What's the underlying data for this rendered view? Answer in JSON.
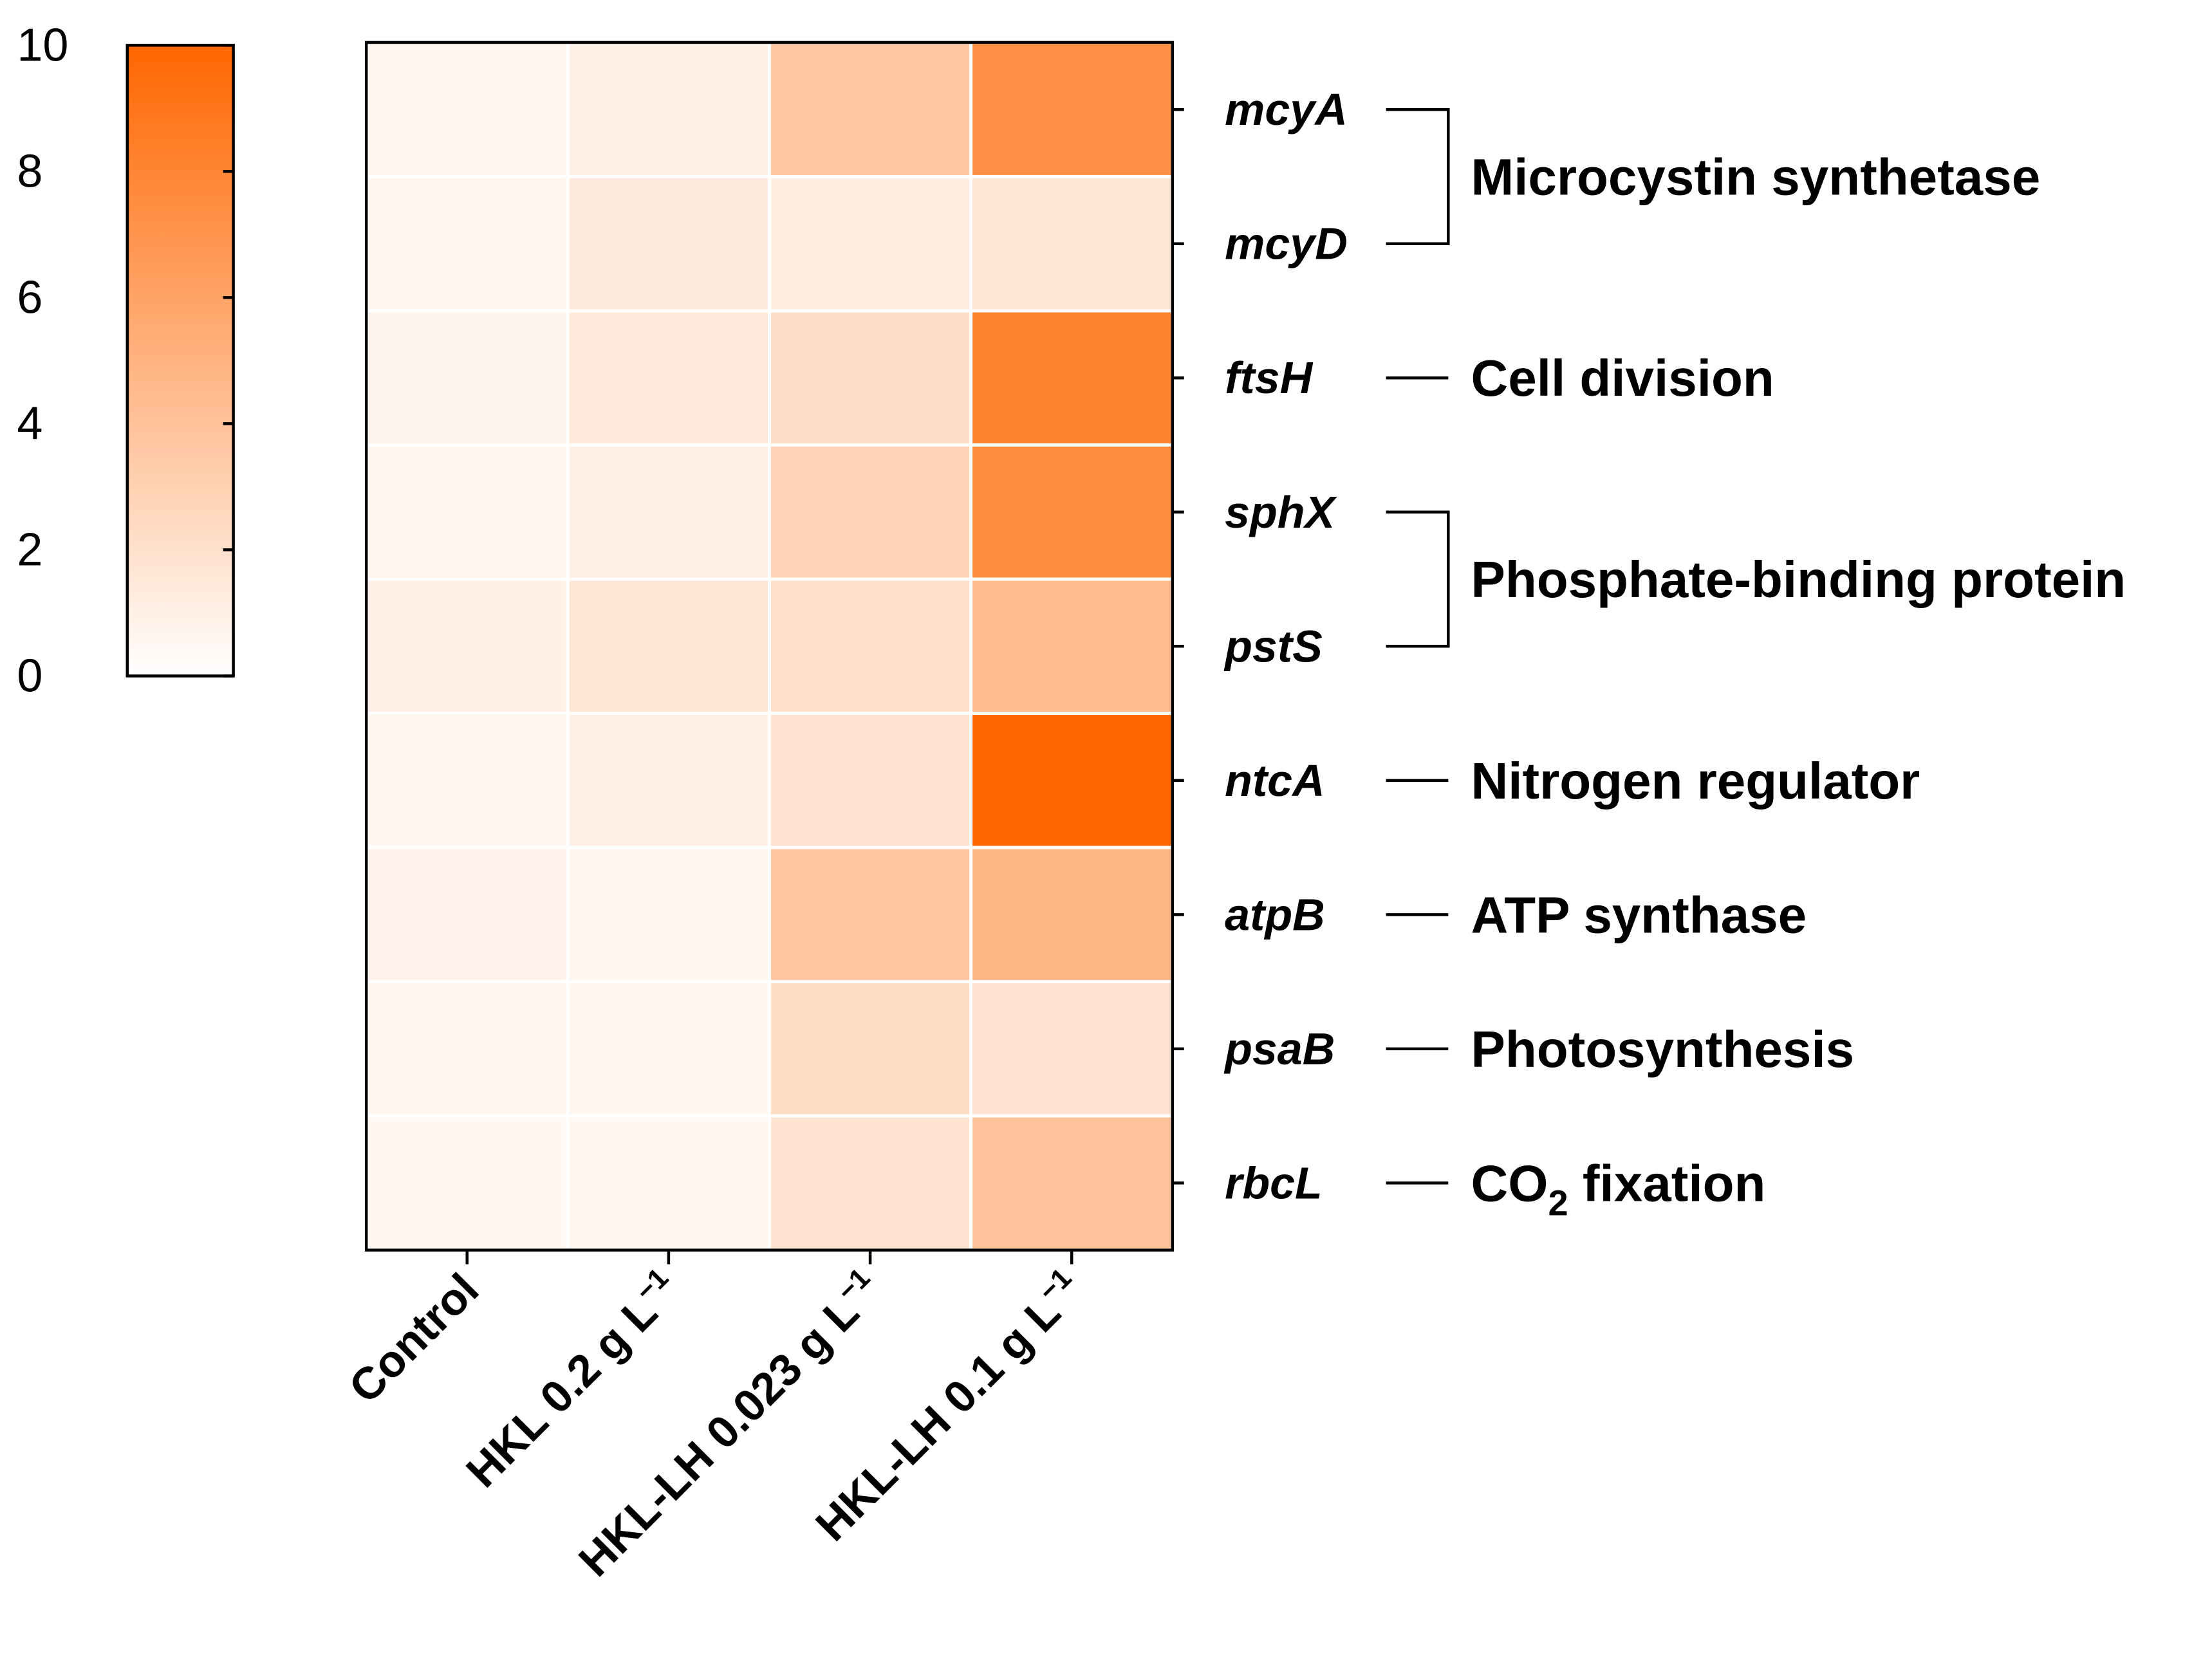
{
  "chart_data": {
    "type": "heatmap",
    "title": "",
    "xlabel": "",
    "ylabel": "",
    "colorbar": {
      "range": [
        0,
        10
      ],
      "ticks": [
        "0",
        "2",
        "4",
        "6",
        "8",
        "10"
      ],
      "color_low": "#ffffff",
      "color_high": "#ff6600"
    },
    "x_categories": [
      {
        "main": "Control",
        "sup": ""
      },
      {
        "main": "HKL 0.2 g L",
        "sup": "−1"
      },
      {
        "main": "HKL-LH 0.023 g L",
        "sup": "−1"
      },
      {
        "main": "HKL-LH 0.1 g L",
        "sup": "−1"
      }
    ],
    "y_categories": [
      "mcyA",
      "mcyD",
      "ftsH",
      "sphX",
      "pstS",
      "ntcA",
      "atpB",
      "psaB",
      "rbcL"
    ],
    "values": [
      [
        0.6,
        0.9,
        3.6,
        7.3
      ],
      [
        0.6,
        1.3,
        1.2,
        1.7
      ],
      [
        0.7,
        1.4,
        2.2,
        8.1
      ],
      [
        0.6,
        1.1,
        2.9,
        7.6
      ],
      [
        0.9,
        1.7,
        2.1,
        4.3
      ],
      [
        0.6,
        0.9,
        1.9,
        10.0
      ],
      [
        0.8,
        0.5,
        3.8,
        4.7
      ],
      [
        0.6,
        0.5,
        2.3,
        1.9
      ],
      [
        0.5,
        0.5,
        1.8,
        3.9
      ]
    ],
    "groups": [
      {
        "label": "Microcystin synthetase",
        "sub": "",
        "label_suffix": "",
        "rows": [
          0,
          1
        ]
      },
      {
        "label": "Cell division",
        "sub": "",
        "label_suffix": "",
        "rows": [
          2
        ]
      },
      {
        "label": "Phosphate-binding protein",
        "sub": "",
        "label_suffix": "",
        "rows": [
          3,
          4
        ]
      },
      {
        "label": "Nitrogen regulator",
        "sub": "",
        "label_suffix": "",
        "rows": [
          5
        ]
      },
      {
        "label": "ATP synthase",
        "sub": "",
        "label_suffix": "",
        "rows": [
          6
        ]
      },
      {
        "label": "Photosynthesis",
        "sub": "",
        "label_suffix": "",
        "rows": [
          7
        ]
      },
      {
        "label": "CO",
        "sub": "2",
        "label_suffix": " fixation",
        "rows": [
          8
        ]
      }
    ]
  }
}
